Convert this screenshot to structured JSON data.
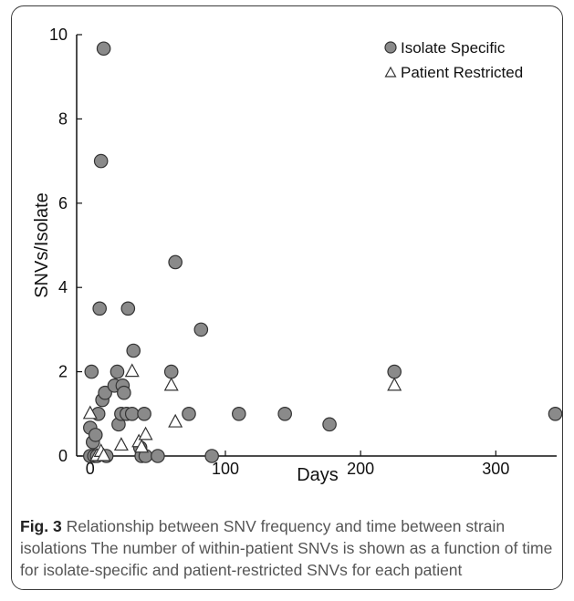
{
  "chart_data": {
    "type": "scatter",
    "title": "",
    "xlabel": "Days",
    "ylabel": "SNVs/Isolate",
    "xlim": [
      -10,
      345
    ],
    "ylim": [
      0,
      10
    ],
    "x_ticks": [
      "0",
      "100",
      "200",
      "300"
    ],
    "y_ticks": [
      "0",
      "2",
      "4",
      "6",
      "8",
      "10"
    ],
    "grid": false,
    "legend_position": "top-right",
    "series": [
      {
        "name": "Isolate Specific",
        "marker": "circle",
        "color": "#8a8a8a",
        "points": [
          [
            0,
            0
          ],
          [
            0,
            0.67
          ],
          [
            1,
            2
          ],
          [
            2,
            0.33
          ],
          [
            3,
            0
          ],
          [
            4,
            0.5
          ],
          [
            5,
            0
          ],
          [
            6,
            1
          ],
          [
            7,
            3.5
          ],
          [
            8,
            7
          ],
          [
            9,
            1.33
          ],
          [
            10,
            9.67
          ],
          [
            11,
            1.5
          ],
          [
            12,
            0
          ],
          [
            18,
            1.67
          ],
          [
            20,
            2
          ],
          [
            21,
            0.75
          ],
          [
            23,
            1
          ],
          [
            24,
            1.67
          ],
          [
            25,
            1.5
          ],
          [
            27,
            1
          ],
          [
            28,
            3.5
          ],
          [
            31,
            1
          ],
          [
            32,
            2.5
          ],
          [
            37,
            0.2
          ],
          [
            38,
            0
          ],
          [
            40,
            1
          ],
          [
            41,
            0
          ],
          [
            50,
            0
          ],
          [
            60,
            2
          ],
          [
            63,
            4.6
          ],
          [
            73,
            1
          ],
          [
            82,
            3
          ],
          [
            90,
            0
          ],
          [
            110,
            1
          ],
          [
            144,
            1
          ],
          [
            177,
            0.75
          ],
          [
            225,
            2
          ],
          [
            344,
            1
          ]
        ]
      },
      {
        "name": "Patient Restricted",
        "marker": "triangle-open",
        "color": "#ffffff",
        "points": [
          [
            0,
            1
          ],
          [
            5,
            0
          ],
          [
            8,
            0.1
          ],
          [
            10,
            0
          ],
          [
            23,
            0.25
          ],
          [
            31,
            2
          ],
          [
            36,
            0.33
          ],
          [
            38,
            0.2
          ],
          [
            41,
            0.5
          ],
          [
            60,
            1.67
          ],
          [
            63,
            0.8
          ],
          [
            225,
            1.67
          ]
        ]
      }
    ]
  },
  "caption": {
    "label": "Fig. 3",
    "text": " Relationship between SNV frequency and time between strain isolations The number of within-patient SNVs is shown as a function of time for isolate-specific and patient-restricted SNVs for each patient"
  }
}
